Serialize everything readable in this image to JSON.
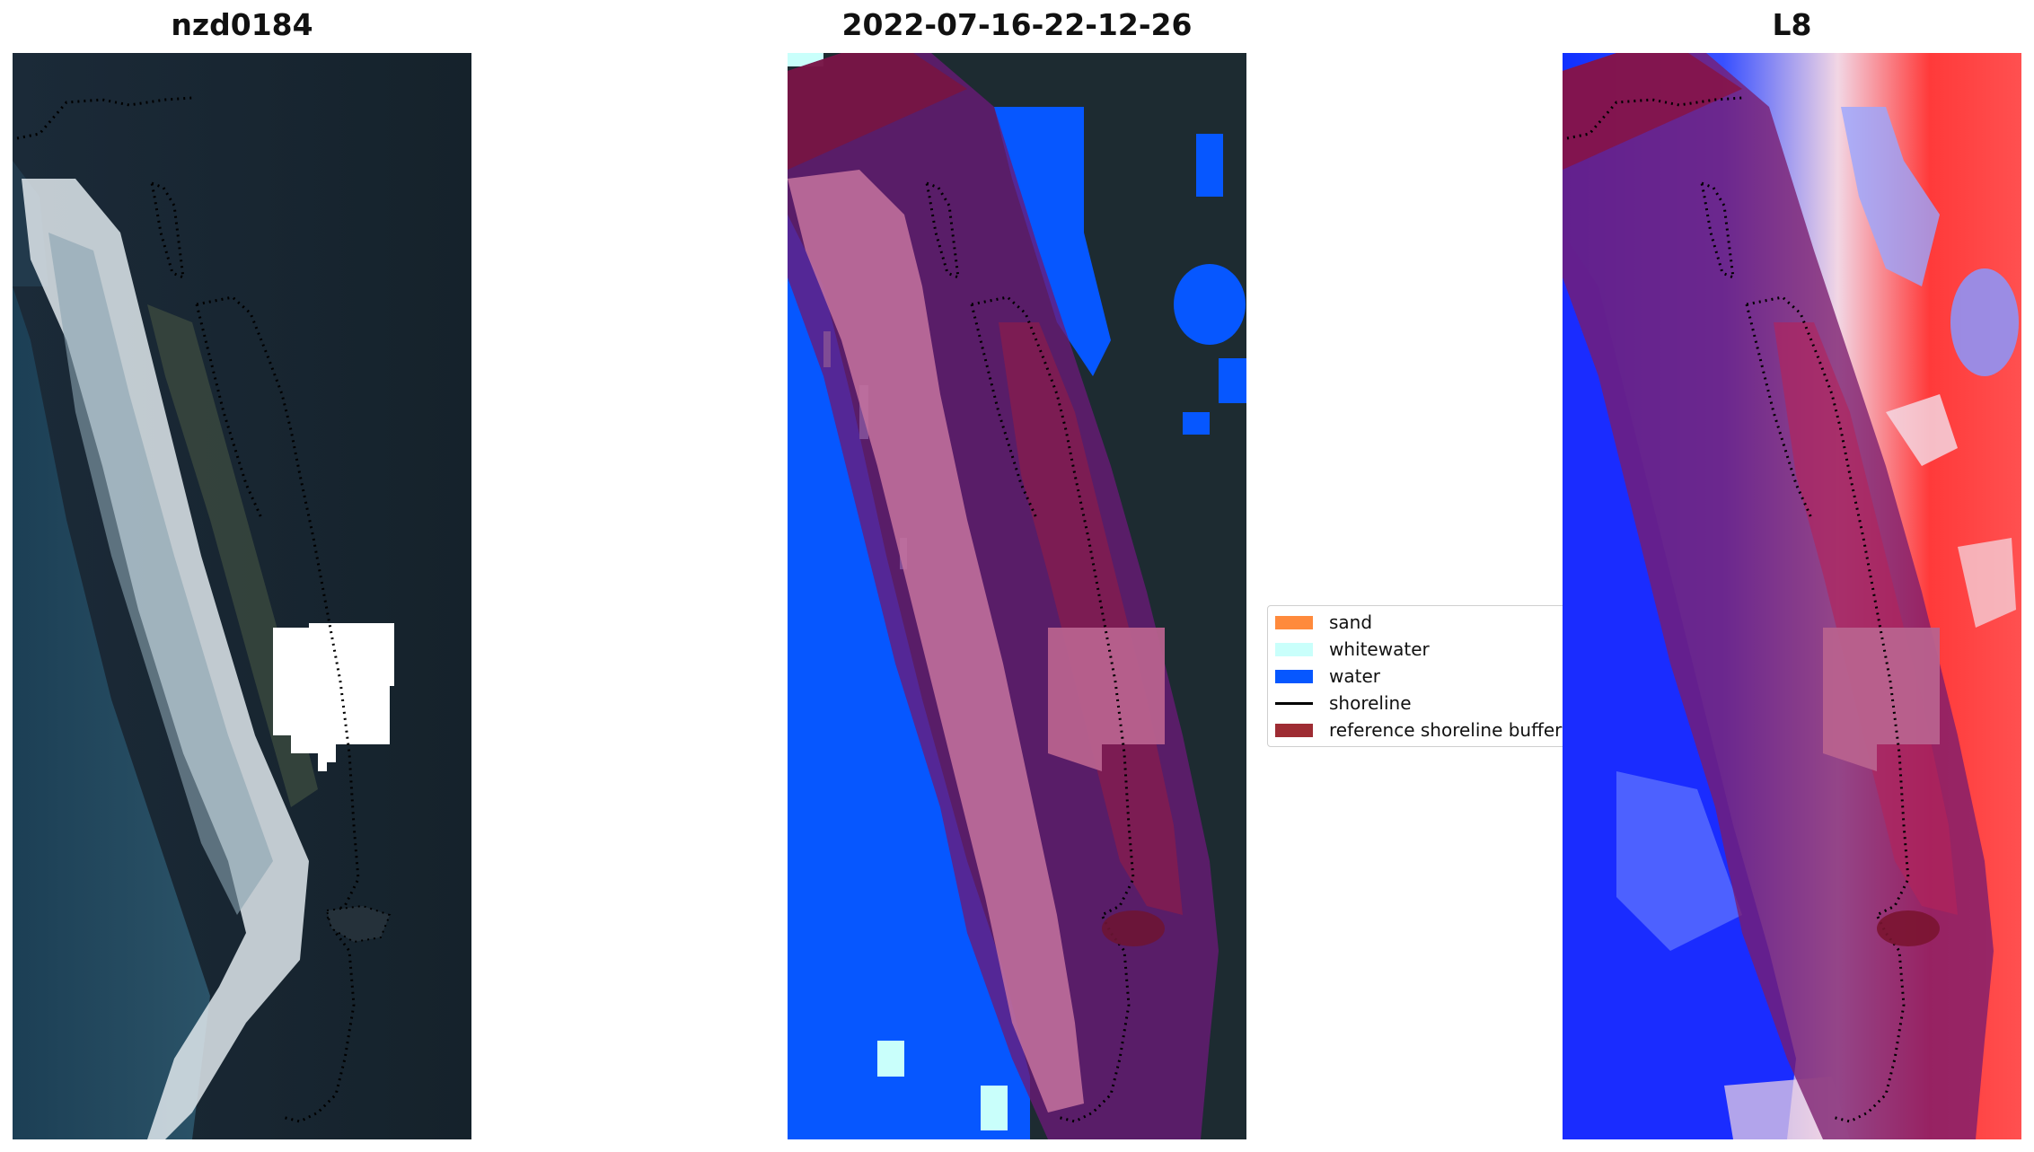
{
  "panels": [
    {
      "title": "nzd0184"
    },
    {
      "title": "2022-07-16-22-12-26"
    },
    {
      "title": "L8"
    }
  ],
  "legend": {
    "items": [
      {
        "label": "sand",
        "color": "#ff8a3c",
        "kind": "patch"
      },
      {
        "label": "whitewater",
        "color": "#c9fffb",
        "kind": "patch"
      },
      {
        "label": "water",
        "color": "#0657ff",
        "kind": "patch"
      },
      {
        "label": "shoreline",
        "color": "#000000",
        "kind": "line"
      },
      {
        "label": "reference shoreline buffer",
        "color": "#9e2c33",
        "kind": "patch"
      }
    ]
  },
  "colors": {
    "buffer_overlay": "#8b1c4a",
    "water": "#0657ff",
    "whitewater": "#c9fffb",
    "cloud_mask": "#ffffff"
  }
}
